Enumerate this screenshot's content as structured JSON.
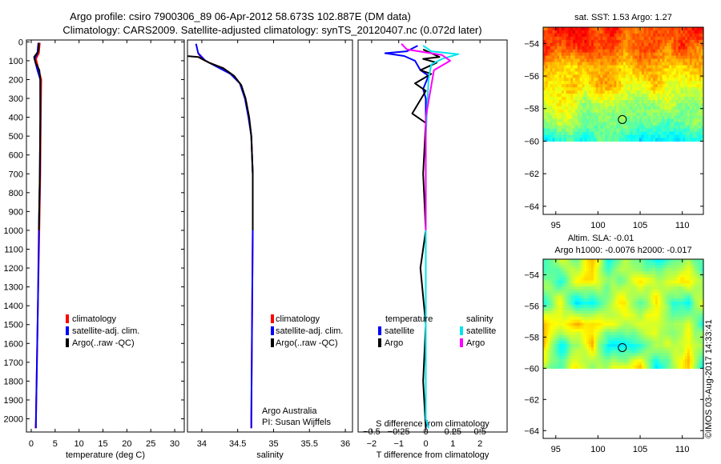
{
  "title_line1": "Argo profile: csiro 7900306_89 06-Apr-2012 58.673S 102.887E (DM data)",
  "title_line2": "Climatology: CARS2009. Satellite-adjusted climatology: synTS_20120407.nc (0.072d later)",
  "colors": {
    "climatology": "#ff0000",
    "satellite": "#0000ff",
    "argo": "#000000",
    "sal_satellite": "#00e5ee",
    "sal_argo": "#ff00ff"
  },
  "chart_data": [
    {
      "type": "line",
      "name": "temperature",
      "xlabel": "temperature (deg C)",
      "ylabel": "",
      "xlim": [
        -1,
        32
      ],
      "ylim": [
        2070,
        -10
      ],
      "xticks": [
        0,
        5,
        10,
        15,
        20,
        25,
        30
      ],
      "yticks": [
        0,
        100,
        200,
        300,
        400,
        500,
        600,
        700,
        800,
        900,
        1000,
        1100,
        1200,
        1300,
        1400,
        1500,
        1600,
        1700,
        1800,
        1900,
        2000
      ],
      "legend": [
        "climatology",
        "satellite-adj. clim.",
        "Argo(..raw -QC)"
      ],
      "series": [
        {
          "name": "climatology",
          "color": "#ff0000",
          "points": [
            [
              1.8,
              5
            ],
            [
              1.6,
              60
            ],
            [
              1.0,
              90
            ],
            [
              1.6,
              150
            ],
            [
              2.1,
              200
            ],
            [
              2.0,
              400
            ],
            [
              1.9,
              700
            ],
            [
              1.7,
              1000
            ],
            [
              1.4,
              1400
            ],
            [
              1.2,
              1700
            ],
            [
              1.0,
              2000
            ],
            [
              0.9,
              2050
            ]
          ]
        },
        {
          "name": "satellite-adj. clim.",
          "color": "#0000ff",
          "points": [
            [
              1.5,
              5
            ],
            [
              1.3,
              60
            ],
            [
              0.7,
              90
            ],
            [
              1.3,
              150
            ],
            [
              1.9,
              200
            ],
            [
              1.9,
              400
            ],
            [
              1.8,
              700
            ],
            [
              1.6,
              1000
            ],
            [
              1.4,
              1400
            ],
            [
              1.2,
              1700
            ],
            [
              1.0,
              2000
            ],
            [
              1.0,
              2050
            ]
          ]
        },
        {
          "name": "Argo(..raw -QC)",
          "color": "#000000",
          "points": [
            [
              1.6,
              5
            ],
            [
              1.5,
              50
            ],
            [
              0.6,
              80
            ],
            [
              0.9,
              110
            ],
            [
              1.7,
              150
            ],
            [
              1.9,
              200
            ],
            [
              1.9,
              400
            ],
            [
              1.8,
              700
            ],
            [
              1.6,
              1000
            ]
          ]
        }
      ]
    },
    {
      "type": "line",
      "name": "salinity",
      "xlabel": "salinity",
      "xlim": [
        33.8,
        36.1
      ],
      "ylim": [
        2070,
        -10
      ],
      "xticks": [
        34,
        34.5,
        35,
        35.5,
        36
      ],
      "xticklabels": [
        "34",
        "34.5",
        "35",
        "35.5",
        "36"
      ],
      "legend": [
        "climatology",
        "satellite-adj. clim.",
        "Argo(..raw -QC)"
      ],
      "annotation": [
        "Argo Australia",
        "PI: Susan Wijffels"
      ],
      "series": [
        {
          "name": "climatology",
          "color": "#ff0000",
          "points": [
            [
              33.95,
              60
            ],
            [
              34.0,
              90
            ],
            [
              34.1,
              110
            ],
            [
              34.3,
              140
            ],
            [
              34.45,
              180
            ],
            [
              34.55,
              230
            ],
            [
              34.61,
              300
            ],
            [
              34.66,
              400
            ],
            [
              34.69,
              500
            ],
            [
              34.71,
              700
            ],
            [
              34.71,
              1000
            ],
            [
              34.7,
              1500
            ],
            [
              34.69,
              2000
            ],
            [
              34.69,
              2050
            ]
          ]
        },
        {
          "name": "satellite-adj. clim.",
          "color": "#0000ff",
          "points": [
            [
              33.92,
              10
            ],
            [
              33.95,
              60
            ],
            [
              34.05,
              100
            ],
            [
              34.2,
              130
            ],
            [
              34.4,
              170
            ],
            [
              34.53,
              220
            ],
            [
              34.6,
              300
            ],
            [
              34.65,
              400
            ],
            [
              34.69,
              500
            ],
            [
              34.71,
              700
            ],
            [
              34.71,
              1000
            ],
            [
              34.7,
              1500
            ],
            [
              34.69,
              2000
            ],
            [
              34.69,
              2050
            ]
          ]
        },
        {
          "name": "Argo(..raw -QC)",
          "color": "#000000",
          "points": [
            [
              33.78,
              75
            ],
            [
              33.95,
              80
            ],
            [
              34.1,
              110
            ],
            [
              34.3,
              140
            ],
            [
              34.45,
              180
            ],
            [
              34.55,
              230
            ],
            [
              34.61,
              300
            ],
            [
              34.66,
              400
            ],
            [
              34.69,
              500
            ],
            [
              34.71,
              700
            ],
            [
              34.71,
              1000
            ]
          ]
        }
      ]
    },
    {
      "type": "line",
      "name": "difference",
      "xlabel": "T difference from climatology",
      "xlabel_top": "S difference from climatology",
      "xlim": [
        -2.5,
        3.0
      ],
      "ylim": [
        2070,
        -10
      ],
      "xticks": [
        -2,
        -1,
        0,
        1,
        2
      ],
      "xticklabels": [
        "−2",
        "−1",
        "0",
        "1",
        "2"
      ],
      "top_ticklabels": [
        "−0.5",
        "−0.25",
        "0",
        "0.25",
        "0.5"
      ],
      "legend_title_temperature": "temperature",
      "legend_title_salinity": "salinity",
      "legend": [
        "satellite",
        "Argo",
        "satellite",
        "Argo"
      ],
      "series": [
        {
          "name": "T satellite",
          "color": "#0000ff",
          "points": [
            [
              -0.3,
              20
            ],
            [
              -0.7,
              50
            ],
            [
              -1.5,
              60
            ],
            [
              -0.8,
              75
            ],
            [
              -0.4,
              100
            ],
            [
              -0.2,
              150
            ],
            [
              0.1,
              180
            ],
            [
              -0.1,
              250
            ],
            [
              0.0,
              300
            ],
            [
              0.0,
              500
            ],
            [
              0.0,
              1000
            ],
            [
              0.0,
              1500
            ],
            [
              0.0,
              2050
            ]
          ]
        },
        {
          "name": "T Argo",
          "color": "#000000",
          "points": [
            [
              -0.1,
              40
            ],
            [
              0.2,
              60
            ],
            [
              0.5,
              80
            ],
            [
              -0.1,
              90
            ],
            [
              0.4,
              110
            ],
            [
              -0.2,
              150
            ],
            [
              0.2,
              170
            ],
            [
              -0.4,
              220
            ],
            [
              0.0,
              260
            ],
            [
              -0.5,
              380
            ],
            [
              0.0,
              430
            ],
            [
              -0.1,
              700
            ],
            [
              0.0,
              1000
            ],
            [
              -0.2,
              1200
            ],
            [
              0.0,
              1500
            ],
            [
              -0.1,
              1800
            ],
            [
              0.0,
              2050
            ]
          ]
        },
        {
          "name": "S satellite",
          "color": "#00e5ee",
          "points": [
            [
              -0.1,
              20
            ],
            [
              0.2,
              50
            ],
            [
              1.2,
              65
            ],
            [
              0.6,
              90
            ],
            [
              0.2,
              120
            ],
            [
              0.1,
              200
            ],
            [
              0.0,
              500
            ],
            [
              0.0,
              2000
            ],
            [
              0.1,
              2050
            ]
          ]
        },
        {
          "name": "S Argo",
          "color": "#ff00ff",
          "points": [
            [
              -0.9,
              10
            ],
            [
              -0.7,
              40
            ],
            [
              0.6,
              70
            ],
            [
              0.9,
              100
            ],
            [
              0.3,
              150
            ],
            [
              0.0,
              400
            ],
            [
              0.0,
              1000
            ]
          ]
        }
      ]
    },
    {
      "type": "heatmap",
      "name": "sst_map",
      "title": "sat. SST: 1.53 Argo: 1.27",
      "xlim": [
        93.5,
        112.5
      ],
      "ylim": [
        -64.5,
        -53
      ],
      "data_ylim": [
        -60,
        -53
      ],
      "xticks": [
        95,
        100,
        105,
        110
      ],
      "yticks": [
        -54,
        -56,
        -58,
        -60,
        -62,
        -64
      ],
      "marker": [
        102.887,
        -58.673
      ],
      "value_range": [
        0.5,
        4.5
      ]
    },
    {
      "type": "heatmap",
      "name": "sla_map",
      "title_line1": "Altim. SLA: -0.01",
      "title_line2": "Argo h1000: -0.0076 h2000: -0.017",
      "xlim": [
        93.5,
        112.5
      ],
      "ylim": [
        -64.5,
        -53
      ],
      "data_ylim": [
        -60,
        -53
      ],
      "xticks": [
        95,
        100,
        105,
        110
      ],
      "yticks": [
        -54,
        -56,
        -58,
        -60,
        -62,
        -64
      ],
      "marker": [
        102.887,
        -58.673
      ],
      "value_range": [
        -0.4,
        0.4
      ]
    }
  ],
  "watermark": "©IMOS 03-Aug-2017 14:33:41"
}
